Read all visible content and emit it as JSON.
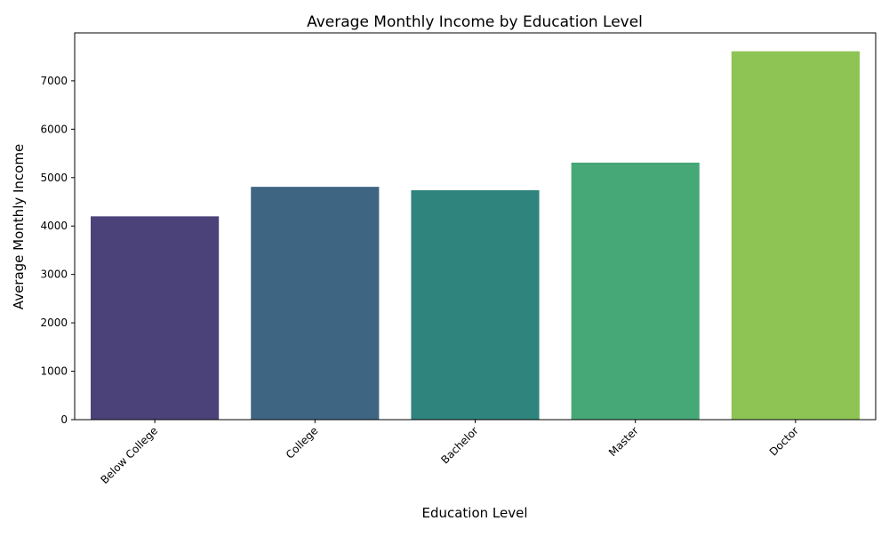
{
  "chart_data": {
    "type": "bar",
    "title": "Average Monthly Income by Education Level",
    "xlabel": "Education Level",
    "ylabel": "Average Monthly Income",
    "categories": [
      "Below College",
      "College",
      "Bachelor",
      "Master",
      "Doctor"
    ],
    "values": [
      4200,
      4810,
      4740,
      5310,
      7610
    ],
    "colors": [
      "#4a4279",
      "#3e6683",
      "#2f847e",
      "#47a877",
      "#8dc454"
    ],
    "ylim": [
      0,
      7990
    ],
    "yticks": [
      0,
      1000,
      2000,
      3000,
      4000,
      5000,
      6000,
      7000
    ],
    "grid": false,
    "legend": "none"
  }
}
